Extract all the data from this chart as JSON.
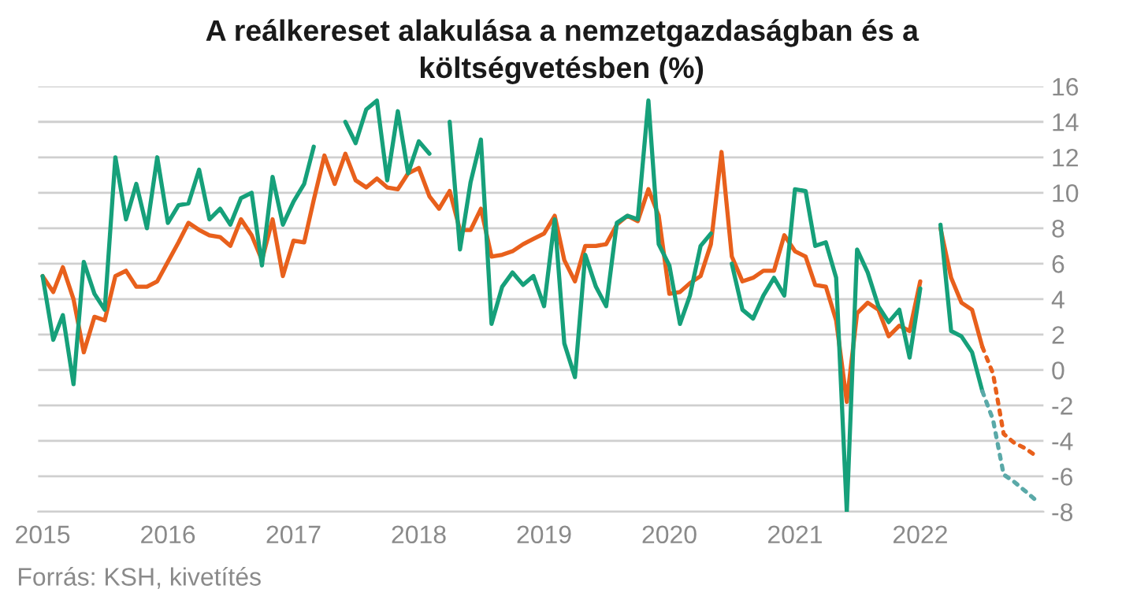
{
  "chart_data": {
    "type": "line",
    "title": "A reálkereset alakulása a nemzetgazdaságban és a\nköltségvetésben (%)",
    "x": [
      "2015-01",
      "2015-02",
      "2015-03",
      "2015-04",
      "2015-05",
      "2015-06",
      "2015-07",
      "2015-08",
      "2015-09",
      "2015-10",
      "2015-11",
      "2015-12",
      "2016-01",
      "2016-02",
      "2016-03",
      "2016-04",
      "2016-05",
      "2016-06",
      "2016-07",
      "2016-08",
      "2016-09",
      "2016-10",
      "2016-11",
      "2016-12",
      "2017-01",
      "2017-02",
      "2017-03",
      "2017-04",
      "2017-05",
      "2017-06",
      "2017-07",
      "2017-08",
      "2017-09",
      "2017-10",
      "2017-11",
      "2017-12",
      "2018-01",
      "2018-02",
      "2018-03",
      "2018-04",
      "2018-05",
      "2018-06",
      "2018-07",
      "2018-08",
      "2018-09",
      "2018-10",
      "2018-11",
      "2018-12",
      "2019-01",
      "2019-02",
      "2019-03",
      "2019-04",
      "2019-05",
      "2019-06",
      "2019-07",
      "2019-08",
      "2019-09",
      "2019-10",
      "2019-11",
      "2019-12",
      "2020-01",
      "2020-02",
      "2020-03",
      "2020-04",
      "2020-05",
      "2020-06",
      "2020-07",
      "2020-08",
      "2020-09",
      "2020-10",
      "2020-11",
      "2020-12",
      "2021-01",
      "2021-02",
      "2021-03",
      "2021-04",
      "2021-05",
      "2021-06",
      "2021-07",
      "2021-08",
      "2021-09",
      "2021-10",
      "2021-11",
      "2021-12",
      "2022-01",
      "2022-02",
      "2022-03",
      "2022-04",
      "2022-05",
      "2022-06",
      "2022-07"
    ],
    "series": [
      {
        "color": "#e8601c",
        "values": [
          5.3,
          4.4,
          5.8,
          4.0,
          1.0,
          3.0,
          2.8,
          5.3,
          5.6,
          4.7,
          4.7,
          5.0,
          6.1,
          7.2,
          8.3,
          7.9,
          7.6,
          7.5,
          7.0,
          8.5,
          7.6,
          6.2,
          8.5,
          5.3,
          7.3,
          7.2,
          9.6,
          12.1,
          10.5,
          12.2,
          10.7,
          10.3,
          10.8,
          10.3,
          10.2,
          11.1,
          11.4,
          9.8,
          9.1,
          10.1,
          7.9,
          7.9,
          9.1,
          6.4,
          6.5,
          6.7,
          7.1,
          7.4,
          7.7,
          8.7,
          6.2,
          5.0,
          7.0,
          7.0,
          7.1,
          8.2,
          8.7,
          8.4,
          10.2,
          8.7,
          4.3,
          4.4,
          4.9,
          5.3,
          7.1,
          12.3,
          6.4,
          5.0,
          5.2,
          5.6,
          5.6,
          7.6,
          6.7,
          6.4,
          4.8,
          4.7,
          2.8,
          -1.8,
          3.2,
          3.8,
          3.4,
          1.9,
          2.5,
          2.2,
          5.0,
          null,
          8.0,
          5.2,
          3.8,
          3.4,
          1.3
        ]
      },
      {
        "color": "#16a07a",
        "values": [
          5.3,
          1.7,
          3.1,
          -0.8,
          6.1,
          4.3,
          3.4,
          12.0,
          8.5,
          10.5,
          8.0,
          12.0,
          8.3,
          9.3,
          9.4,
          11.3,
          8.5,
          9.1,
          8.2,
          9.7,
          10.0,
          5.9,
          10.9,
          8.2,
          9.5,
          10.5,
          12.6,
          null,
          null,
          14.0,
          12.8,
          14.7,
          15.2,
          10.7,
          14.6,
          11.1,
          12.9,
          12.2,
          null,
          14.0,
          6.8,
          10.6,
          13.0,
          2.6,
          4.7,
          5.5,
          4.8,
          5.3,
          3.6,
          8.5,
          1.5,
          -0.4,
          6.5,
          4.7,
          3.6,
          8.3,
          8.7,
          8.5,
          15.2,
          7.1,
          5.9,
          2.6,
          4.2,
          7.0,
          7.7,
          null,
          6.0,
          3.4,
          2.9,
          4.2,
          5.2,
          4.2,
          10.2,
          10.1,
          7.0,
          7.2,
          5.2,
          -8.0,
          6.8,
          5.5,
          3.6,
          2.7,
          3.4,
          0.7,
          4.6,
          null,
          8.2,
          2.2,
          1.9,
          1.0,
          -1.2
        ]
      },
      {
        "color": "#e8601c",
        "line_style": "dotted",
        "x": [
          "2022-07",
          "2022-08",
          "2022-09",
          "2022-10",
          "2022-11",
          "2022-12"
        ],
        "values": [
          1.3,
          -0.2,
          -3.6,
          -4.1,
          -4.4,
          -4.8
        ]
      },
      {
        "color": "#5aa9a8",
        "line_style": "dotted",
        "x": [
          "2022-07",
          "2022-08",
          "2022-09",
          "2022-10",
          "2022-11",
          "2022-12"
        ],
        "values": [
          -1.2,
          -2.8,
          -5.9,
          -6.3,
          -6.8,
          -7.3
        ]
      }
    ],
    "xlim": [
      "2014-12-19",
      "2022-12-26"
    ],
    "xticks": [
      {
        "value": "2015",
        "label": "2015"
      },
      {
        "value": "2016",
        "label": "2016"
      },
      {
        "value": "2017",
        "label": "2017"
      },
      {
        "value": "2018",
        "label": "2018"
      },
      {
        "value": "2019",
        "label": "2019"
      },
      {
        "value": "2020",
        "label": "2020"
      },
      {
        "value": "2021",
        "label": "2021"
      },
      {
        "value": "2022",
        "label": "2022"
      }
    ],
    "ylim": [
      -8,
      16
    ],
    "yticks": [
      -8,
      -6,
      -4,
      -2,
      0,
      2,
      4,
      6,
      8,
      10,
      12,
      14,
      16
    ],
    "grid": "y",
    "line_style": "solid",
    "annotations": [
      "Forrás: KSH, kivetítés"
    ]
  }
}
